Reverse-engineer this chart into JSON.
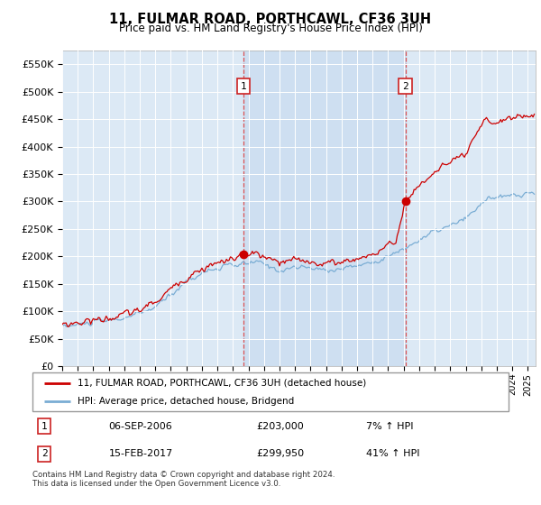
{
  "title": "11, FULMAR ROAD, PORTHCAWL, CF36 3UH",
  "subtitle": "Price paid vs. HM Land Registry's House Price Index (HPI)",
  "ylabel_ticks": [
    "£0",
    "£50K",
    "£100K",
    "£150K",
    "£200K",
    "£250K",
    "£300K",
    "£350K",
    "£400K",
    "£450K",
    "£500K",
    "£550K"
  ],
  "ytick_values": [
    0,
    50000,
    100000,
    150000,
    200000,
    250000,
    300000,
    350000,
    400000,
    450000,
    500000,
    550000
  ],
  "ylim": [
    0,
    575000
  ],
  "plot_bg": "#dce9f5",
  "shade_color": "#c5d9ef",
  "line1_color": "#cc0000",
  "line2_color": "#7aadd4",
  "sale1_year": 2006.67,
  "sale1_price": 203000,
  "sale2_year": 2017.12,
  "sale2_price": 299950,
  "legend_line1": "11, FULMAR ROAD, PORTHCAWL, CF36 3UH (detached house)",
  "legend_line2": "HPI: Average price, detached house, Bridgend",
  "annotation1_date": "06-SEP-2006",
  "annotation1_price": "£203,000",
  "annotation1_hpi": "7% ↑ HPI",
  "annotation2_date": "15-FEB-2017",
  "annotation2_price": "£299,950",
  "annotation2_hpi": "41% ↑ HPI",
  "footer": "Contains HM Land Registry data © Crown copyright and database right 2024.\nThis data is licensed under the Open Government Licence v3.0.",
  "xmin": 1995.0,
  "xmax": 2025.5
}
